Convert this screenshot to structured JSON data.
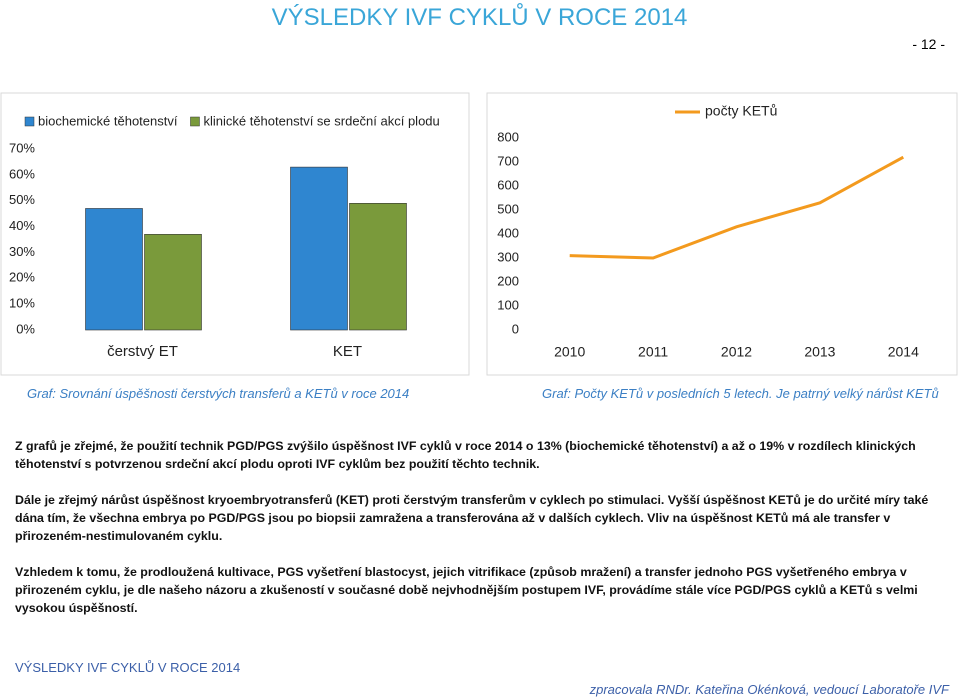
{
  "header": {
    "title": "VÝSLEDKY IVF CYKLŮ V ROCE 2014",
    "page": "- 12 -"
  },
  "chart_data": [
    {
      "type": "bar",
      "categories": [
        "čerstvý ET",
        "KET"
      ],
      "series": [
        {
          "name": "biochemické těhotenství",
          "color": "#2f86d0",
          "values": [
            47,
            63
          ]
        },
        {
          "name": "klinické těhotenství se srdeční akcí plodu",
          "color": "#7a9a3b",
          "values": [
            37,
            49
          ]
        }
      ],
      "ylim": [
        0,
        70
      ],
      "yticks": [
        {
          "value": 0,
          "label": "0%"
        },
        {
          "value": 10,
          "label": "10%"
        },
        {
          "value": 20,
          "label": "20%"
        },
        {
          "value": 30,
          "label": "30%"
        },
        {
          "value": 40,
          "label": "40%"
        },
        {
          "value": 50,
          "label": "50%"
        },
        {
          "value": 60,
          "label": "60%"
        },
        {
          "value": 70,
          "label": "70%"
        }
      ],
      "grid": false,
      "legend": "top",
      "caption": "Graf: Srovnání úspěšnosti čerstvých transferů a KETů v roce 2014"
    },
    {
      "type": "line",
      "x": [
        2010,
        2011,
        2012,
        2013,
        2014
      ],
      "xlim": [
        2009.5,
        2014.5
      ],
      "xticks": [
        2010,
        2011,
        2012,
        2013,
        2014
      ],
      "series": [
        {
          "name": "počty KETů",
          "color": "#f39a1e",
          "values": [
            310,
            300,
            430,
            530,
            720
          ]
        }
      ],
      "ylim": [
        0,
        800
      ],
      "yticks": [
        0,
        100,
        200,
        300,
        400,
        500,
        600,
        700,
        800
      ],
      "grid": false,
      "legend": "top-right",
      "caption": "Graf: Počty KETů  v posledních 5 letech. Je patrný velký nárůst KETů"
    }
  ],
  "paragraphs": [
    "Z grafů je zřejmé, že použití technik PGD/PGS zvýšilo úspěšnost IVF cyklů v roce 2014 o 13% (biochemické těhotenství) a až o 19% v rozdílech klinických těhotenství s potvrzenou srdeční akcí plodu oproti IVF cyklům bez použití těchto technik.",
    "Dále je zřejmý nárůst úspěšnost kryoembryotransferů (KET) proti čerstvým transferům v cyklech po stimulaci. Vyšší úspěšnost KETů je do určité míry také dána tím, že všechna embrya po PGD/PGS jsou po biopsii zamražena a transferována až v dalších cyklech. Vliv na úspěšnost KETů má ale transfer v přirozeném-nestimulovaném cyklu.",
    "Vzhledem k tomu, že prodloužená kultivace, PGS vyšetření blastocyst, jejich vitrifikace (způsob mražení) a transfer jednoho PGS vyšetřeného embrya v přirozeném cyklu, je dle našeho názoru a zkušeností v současné době nejvhodnějším postupem IVF, provádíme stále více PGD/PGS cyklů a KETů s velmi vysokou úspěšností."
  ],
  "footer": {
    "left": "VÝSLEDKY IVF CYKLŮ V ROCE 2014",
    "right": "zpracovala RNDr. Kateřina Okénková, vedoucí Laboratoře IVF"
  }
}
